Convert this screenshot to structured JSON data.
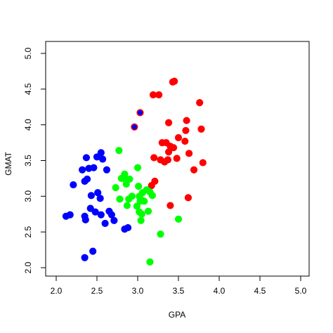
{
  "chart_data": {
    "type": "scatter",
    "title": "",
    "xlabel": "GPA",
    "ylabel": "GMAT",
    "xlim": [
      2.0,
      5.0
    ],
    "ylim": [
      2.0,
      5.0
    ],
    "x_ticks": [
      2.0,
      2.5,
      3.0,
      3.5,
      4.0,
      4.5,
      5.0
    ],
    "x_tick_labels": [
      "2.0",
      "2.5",
      "3.0",
      "3.5",
      "4.0",
      "4.5",
      "5.0"
    ],
    "y_ticks": [
      2.0,
      2.5,
      3.0,
      3.5,
      4.0,
      4.5,
      5.0
    ],
    "y_tick_labels": [
      "2.0",
      "2.5",
      "3.0",
      "3.5",
      "4.0",
      "4.5",
      "5.0"
    ],
    "grid": false,
    "legend": "none",
    "series": [
      {
        "color": "#ff0000",
        "points": [
          [
            2.96,
            3.97
          ],
          [
            3.03,
            4.17
          ],
          [
            3.19,
            4.42
          ],
          [
            3.26,
            4.42
          ],
          [
            3.43,
            4.6
          ],
          [
            3.45,
            4.61
          ],
          [
            3.76,
            4.31
          ],
          [
            3.38,
            4.03
          ],
          [
            3.6,
            4.06
          ],
          [
            3.59,
            3.92
          ],
          [
            3.78,
            3.94
          ],
          [
            3.5,
            3.82
          ],
          [
            3.3,
            3.75
          ],
          [
            3.35,
            3.75
          ],
          [
            3.4,
            3.7
          ],
          [
            3.38,
            3.62
          ],
          [
            3.44,
            3.68
          ],
          [
            3.58,
            3.77
          ],
          [
            3.2,
            3.54
          ],
          [
            3.28,
            3.51
          ],
          [
            3.33,
            3.48
          ],
          [
            3.37,
            3.51
          ],
          [
            3.48,
            3.53
          ],
          [
            3.63,
            3.6
          ],
          [
            3.8,
            3.47
          ],
          [
            3.69,
            3.37
          ],
          [
            3.21,
            3.21
          ],
          [
            3.17,
            3.15
          ],
          [
            3.62,
            2.98
          ],
          [
            3.4,
            2.87
          ]
        ]
      },
      {
        "color": "#0000ff",
        "points": [
          [
            2.96,
            3.97
          ],
          [
            3.03,
            4.17
          ],
          [
            2.55,
            3.61
          ],
          [
            2.5,
            3.55
          ],
          [
            2.57,
            3.52
          ],
          [
            2.37,
            3.54
          ],
          [
            2.46,
            3.4
          ],
          [
            2.4,
            3.39
          ],
          [
            2.32,
            3.37
          ],
          [
            2.62,
            3.37
          ],
          [
            2.38,
            3.24
          ],
          [
            2.35,
            3.21
          ],
          [
            2.21,
            3.16
          ],
          [
            2.51,
            3.05
          ],
          [
            2.43,
            3.01
          ],
          [
            2.54,
            2.97
          ],
          [
            2.42,
            2.83
          ],
          [
            2.48,
            2.78
          ],
          [
            2.65,
            2.79
          ],
          [
            2.68,
            2.74
          ],
          [
            2.55,
            2.74
          ],
          [
            2.12,
            2.72
          ],
          [
            2.17,
            2.74
          ],
          [
            2.35,
            2.72
          ],
          [
            2.36,
            2.67
          ],
          [
            2.71,
            2.66
          ],
          [
            2.6,
            2.62
          ],
          [
            2.88,
            2.56
          ],
          [
            2.84,
            2.54
          ],
          [
            2.45,
            2.23
          ],
          [
            2.35,
            2.14
          ]
        ]
      },
      {
        "color": "#00ff00",
        "points": [
          [
            2.77,
            3.64
          ],
          [
            3.0,
            3.4
          ],
          [
            2.84,
            3.31
          ],
          [
            2.83,
            3.25
          ],
          [
            2.9,
            3.24
          ],
          [
            2.8,
            3.25
          ],
          [
            2.86,
            3.17
          ],
          [
            2.73,
            3.12
          ],
          [
            3.01,
            3.14
          ],
          [
            3.06,
            3.05
          ],
          [
            3.15,
            3.06
          ],
          [
            3.11,
            3.09
          ],
          [
            3.18,
            3.01
          ],
          [
            2.93,
            3.0
          ],
          [
            3.02,
            3.0
          ],
          [
            3.03,
            2.93
          ],
          [
            3.06,
            2.94
          ],
          [
            3.08,
            2.93
          ],
          [
            2.78,
            2.96
          ],
          [
            2.89,
            2.96
          ],
          [
            2.99,
            2.86
          ],
          [
            2.87,
            2.87
          ],
          [
            3.02,
            2.78
          ],
          [
            3.13,
            2.79
          ],
          [
            3.05,
            2.75
          ],
          [
            3.04,
            2.66
          ],
          [
            3.5,
            2.68
          ],
          [
            3.28,
            2.47
          ],
          [
            3.15,
            2.08
          ]
        ]
      }
    ]
  }
}
